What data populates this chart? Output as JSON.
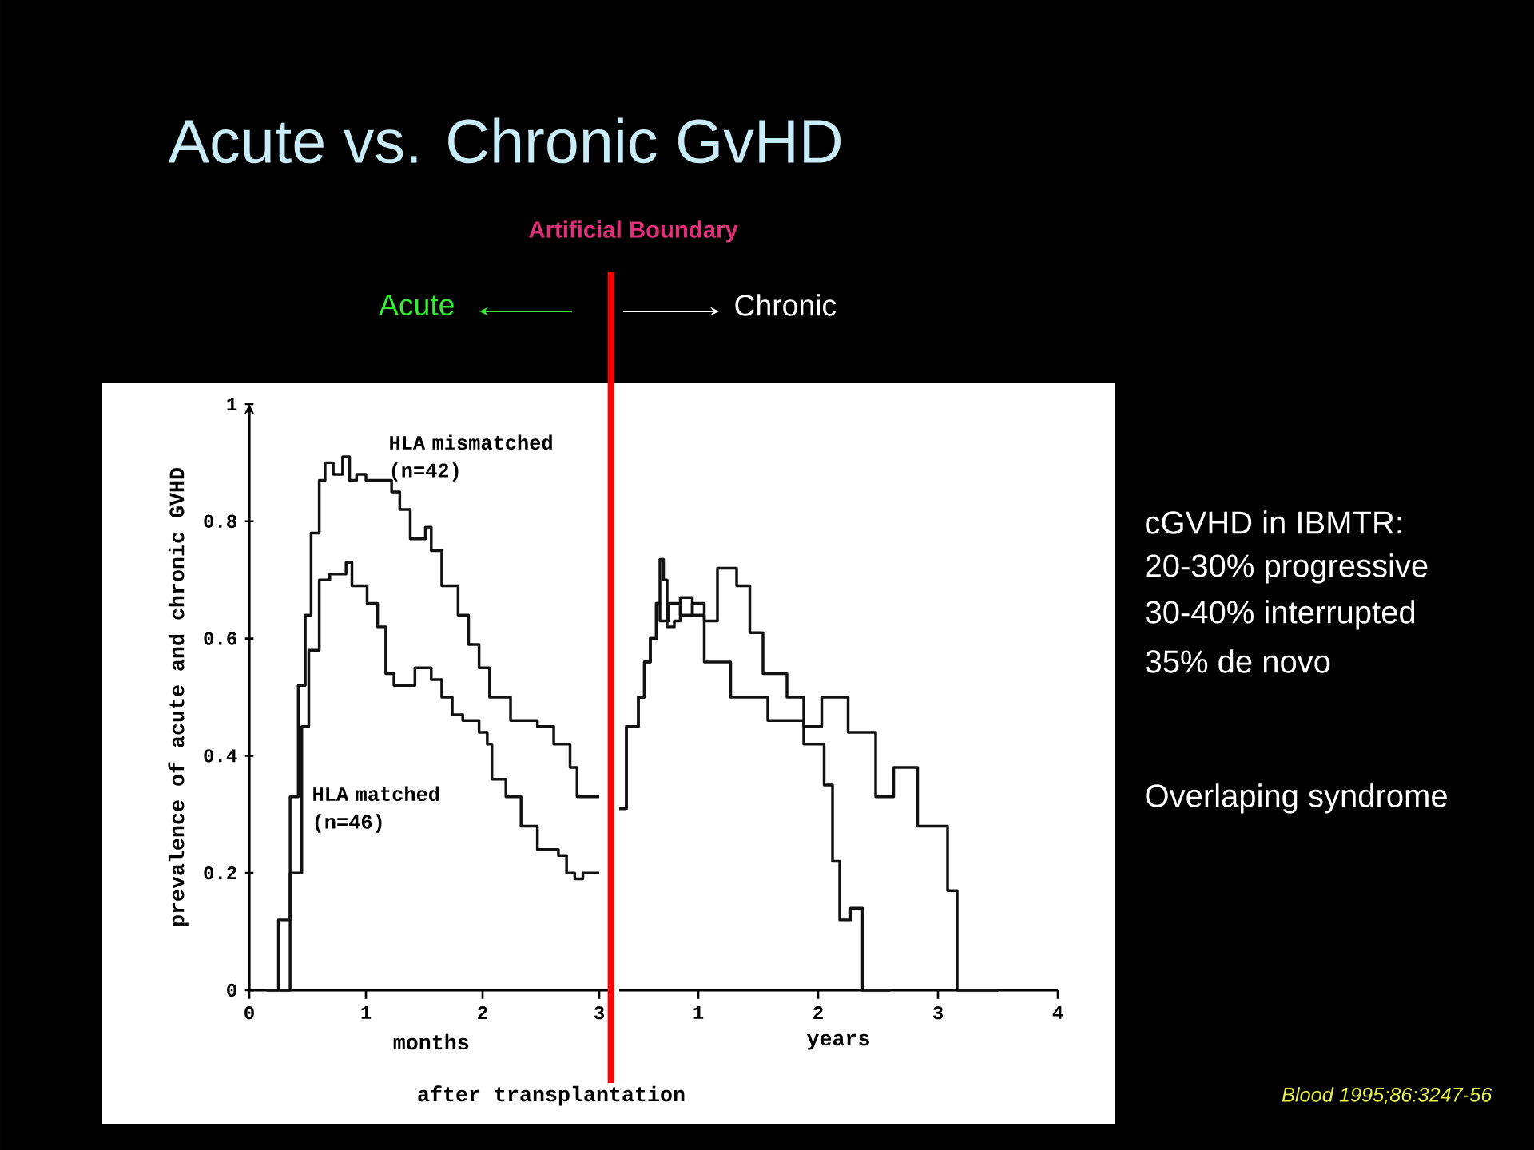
{
  "chart_data": [
    {
      "type": "step",
      "title": "Acute vs. Chronic GvHD",
      "xlabel": "months",
      "ylabel": "prevalence of acute and chronic GVHD",
      "xlim": [
        0,
        3.12
      ],
      "ylim": [
        0,
        1
      ],
      "xticks": [
        0,
        1,
        2,
        3
      ],
      "yticks": [
        0,
        0.2,
        0.4,
        0.6,
        0.8,
        1
      ],
      "series": [
        {
          "name": "HLA mismatched (n=42)",
          "color": "#111111",
          "x": [
            0.15,
            0.25,
            0.35,
            0.42,
            0.48,
            0.53,
            0.6,
            0.65,
            0.72,
            0.8,
            0.86,
            0.92,
            1.0,
            1.22,
            1.29,
            1.38,
            1.51,
            1.56,
            1.65,
            1.79,
            1.88,
            1.97,
            2.06,
            2.24,
            2.47,
            2.61,
            2.75,
            2.81,
            3.0
          ],
          "values": [
            0,
            0.12,
            0.33,
            0.52,
            0.64,
            0.78,
            0.87,
            0.9,
            0.88,
            0.91,
            0.87,
            0.88,
            0.87,
            0.85,
            0.82,
            0.77,
            0.79,
            0.75,
            0.69,
            0.64,
            0.59,
            0.55,
            0.5,
            0.46,
            0.45,
            0.42,
            0.38,
            0.33,
            0.33
          ]
        },
        {
          "name": "HLA matched (n=46)",
          "color": "#111111",
          "x": [
            0.26,
            0.35,
            0.45,
            0.51,
            0.6,
            0.69,
            0.83,
            0.88,
            1.01,
            1.1,
            1.17,
            1.24,
            1.42,
            1.56,
            1.65,
            1.74,
            1.83,
            1.97,
            2.04,
            2.08,
            2.2,
            2.33,
            2.47,
            2.65,
            2.72,
            2.79,
            2.86,
            3.0
          ],
          "values": [
            0,
            0.2,
            0.45,
            0.58,
            0.7,
            0.71,
            0.73,
            0.69,
            0.66,
            0.62,
            0.54,
            0.52,
            0.55,
            0.53,
            0.5,
            0.47,
            0.46,
            0.44,
            0.42,
            0.36,
            0.33,
            0.28,
            0.24,
            0.23,
            0.2,
            0.19,
            0.2,
            0.2
          ]
        }
      ],
      "ref_lines": [
        {
          "axis": "x",
          "value": 3.1,
          "label": "Artificial Boundary",
          "color": "#ff0000"
        }
      ],
      "annotations": [
        "Acute",
        "Chronic",
        "cGVHD in IBMTR:",
        "20-30% progressive",
        "30-40% interrupted",
        "35% de novo",
        "Overlaping syndrome",
        "Blood 1995;86:3247-56"
      ]
    },
    {
      "type": "step",
      "xlabel": "years",
      "xlim": [
        0.34,
        4
      ],
      "ylim": [
        0,
        1
      ],
      "xticks": [
        1,
        2,
        3,
        4
      ],
      "tick_labels": "x",
      "series": [
        {
          "color": "#111111",
          "x": [
            0.34,
            0.4,
            0.5,
            0.55,
            0.6,
            0.65,
            0.68,
            0.75,
            0.85,
            0.95,
            1.05,
            1.16,
            1.32,
            1.43,
            1.54,
            1.74,
            1.88,
            2.03,
            2.25,
            2.48,
            2.63,
            2.83,
            3.08,
            3.16,
            3.5
          ],
          "values": [
            0.31,
            0.45,
            0.5,
            0.56,
            0.6,
            0.66,
            0.63,
            0.66,
            0.64,
            0.66,
            0.63,
            0.72,
            0.69,
            0.61,
            0.54,
            0.5,
            0.45,
            0.5,
            0.44,
            0.33,
            0.38,
            0.28,
            0.17,
            0,
            0
          ]
        },
        {
          "color": "#111111",
          "x": [
            0.34,
            0.4,
            0.5,
            0.55,
            0.6,
            0.65,
            0.68,
            0.71,
            0.74,
            0.8,
            0.85,
            0.95,
            1.05,
            1.27,
            1.58,
            1.88,
            2.05,
            2.12,
            2.18,
            2.27,
            2.37,
            2.6
          ],
          "values": [
            0.31,
            0.45,
            0.5,
            0.56,
            0.6,
            0.66,
            0.735,
            0.7,
            0.62,
            0.63,
            0.67,
            0.64,
            0.56,
            0.5,
            0.46,
            0.42,
            0.35,
            0.22,
            0.12,
            0.14,
            0,
            0
          ]
        }
      ],
      "annotations": [
        "after transplantation"
      ]
    }
  ]
}
